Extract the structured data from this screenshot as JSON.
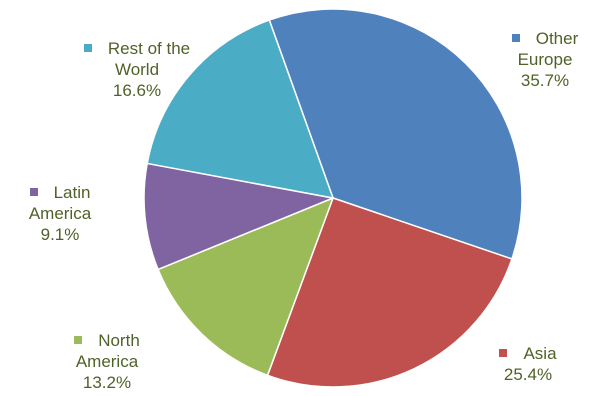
{
  "chart_data": {
    "type": "pie",
    "slices": [
      {
        "label_lines": [
          "Other",
          "Europe"
        ],
        "value": 35.7,
        "value_label": "35.7%",
        "color": "#4f81bd"
      },
      {
        "label_lines": [
          "Asia"
        ],
        "value": 25.4,
        "value_label": "25.4%",
        "color": "#c0504d"
      },
      {
        "label_lines": [
          "North",
          "America"
        ],
        "value": 13.2,
        "value_label": "13.2%",
        "color": "#9bbb59"
      },
      {
        "label_lines": [
          "Latin",
          "America"
        ],
        "value": 9.1,
        "value_label": "9.1%",
        "color": "#8064a2"
      },
      {
        "label_lines": [
          "Rest of the",
          "World"
        ],
        "value": 16.6,
        "value_label": "16.6%",
        "color": "#4bacc6"
      }
    ],
    "label_color": "#4f6228"
  }
}
